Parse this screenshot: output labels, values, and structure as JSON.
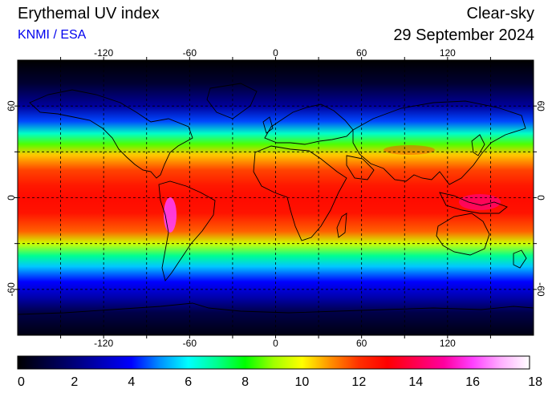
{
  "header": {
    "title": "Erythemal UV index",
    "credit": "KNMI / ESA",
    "mode": "Clear-sky",
    "date": "29 September 2024"
  },
  "map": {
    "lon_range": [
      -180,
      180
    ],
    "lat_range": [
      -90,
      90
    ],
    "grid_lons": [
      -150,
      -120,
      -90,
      -60,
      -30,
      0,
      30,
      60,
      90,
      120,
      150
    ],
    "grid_lats": [
      -60,
      -30,
      0,
      30,
      60
    ],
    "lon_labels": [
      "-120",
      "-60",
      "0",
      "60",
      "120"
    ],
    "lon_label_values": [
      -120,
      -60,
      0,
      60,
      120
    ],
    "lat_labels": [
      "-60",
      "0",
      "60"
    ],
    "lat_label_values": [
      -60,
      0,
      60
    ]
  },
  "colorbar": {
    "min": 0,
    "max": 18,
    "tick_labels": [
      "0",
      "2",
      "4",
      "6",
      "8",
      "10",
      "12",
      "14",
      "16",
      "18"
    ],
    "stops": [
      {
        "v": 0,
        "c": "#000000"
      },
      {
        "v": 2,
        "c": "#00007a"
      },
      {
        "v": 4,
        "c": "#0000ff"
      },
      {
        "v": 5,
        "c": "#0090ff"
      },
      {
        "v": 6,
        "c": "#00ffff"
      },
      {
        "v": 7,
        "c": "#00ff90"
      },
      {
        "v": 8,
        "c": "#00ff00"
      },
      {
        "v": 9,
        "c": "#a0ff00"
      },
      {
        "v": 10,
        "c": "#ffff00"
      },
      {
        "v": 11,
        "c": "#ff9000"
      },
      {
        "v": 12,
        "c": "#ff3000"
      },
      {
        "v": 13,
        "c": "#ff0000"
      },
      {
        "v": 14,
        "c": "#ff0050"
      },
      {
        "v": 15,
        "c": "#ff00a0"
      },
      {
        "v": 16,
        "c": "#ff40ff"
      },
      {
        "v": 17,
        "c": "#ffb0ff"
      },
      {
        "v": 18,
        "c": "#ffffff"
      }
    ]
  },
  "uv_profile": [
    {
      "lat": 90,
      "uv": 0
    },
    {
      "lat": 75,
      "uv": 0.8
    },
    {
      "lat": 60,
      "uv": 2.5
    },
    {
      "lat": 50,
      "uv": 4.5
    },
    {
      "lat": 42,
      "uv": 6.5
    },
    {
      "lat": 35,
      "uv": 8.5
    },
    {
      "lat": 28,
      "uv": 10.5
    },
    {
      "lat": 18,
      "uv": 11.8
    },
    {
      "lat": 8,
      "uv": 12.5
    },
    {
      "lat": 0,
      "uv": 12.8
    },
    {
      "lat": -10,
      "uv": 12.6
    },
    {
      "lat": -22,
      "uv": 11.5
    },
    {
      "lat": -30,
      "uv": 9.5
    },
    {
      "lat": -38,
      "uv": 7.0
    },
    {
      "lat": -45,
      "uv": 5.5
    },
    {
      "lat": -55,
      "uv": 4.0
    },
    {
      "lat": -65,
      "uv": 2.8
    },
    {
      "lat": -75,
      "uv": 1.2
    },
    {
      "lat": -90,
      "uv": 0.3
    }
  ]
}
